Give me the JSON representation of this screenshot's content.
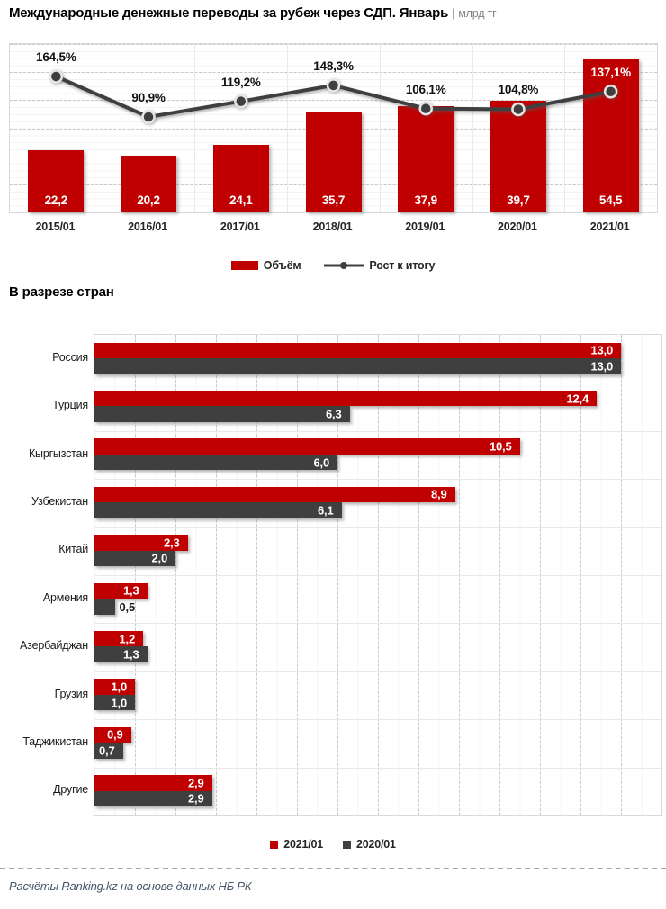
{
  "header": {
    "title": "Международные денежные переводы за рубеж через СДП. Январь",
    "separator": "|",
    "unit": "млрд тг"
  },
  "chart_data": [
    {
      "type": "bar",
      "subtype": "columns-with-growth-line",
      "title": "Международные денежные переводы за рубеж через СДП. Январь",
      "ylabel": "млрд тг",
      "ylim": [
        0,
        60
      ],
      "grid": "horizontal dashed majors every 10, light minor lines, legend bottom",
      "categories": [
        "2015/01",
        "2016/01",
        "2017/01",
        "2018/01",
        "2019/01",
        "2020/01",
        "2021/01"
      ],
      "series": [
        {
          "name": "Объём",
          "role": "bar",
          "color": "#C00000",
          "values": [
            22.2,
            20.2,
            24.1,
            35.7,
            37.9,
            39.7,
            54.5
          ],
          "labels": [
            "22,2",
            "20,2",
            "24,1",
            "35,7",
            "37,9",
            "39,7",
            "54,5"
          ]
        },
        {
          "name": "Рост к итогу",
          "role": "line",
          "color": "#3F3F3F",
          "values": [
            164.5,
            90.9,
            119.2,
            148.3,
            106.1,
            104.8,
            137.1
          ],
          "labels": [
            "164,5%",
            "90,9%",
            "119,2%",
            "148,3%",
            "106,1%",
            "104,8%",
            "137,1%"
          ]
        }
      ]
    },
    {
      "type": "bar",
      "subtype": "horizontal-grouped",
      "title": "В разрезе стран",
      "xlim": [
        0,
        14
      ],
      "grid": "vertical dashed majors every 1, light minor lines, legend bottom",
      "categories": [
        "Россия",
        "Турция",
        "Кыргызстан",
        "Узбекистан",
        "Китай",
        "Армения",
        "Азербайджан",
        "Грузия",
        "Таджикистан",
        "Другие"
      ],
      "series": [
        {
          "name": "2021/01",
          "color": "#C00000",
          "values": [
            13.0,
            12.4,
            10.5,
            8.9,
            2.3,
            1.3,
            1.2,
            1.0,
            0.9,
            2.9
          ],
          "labels": [
            "13,0",
            "12,4",
            "10,5",
            "8,9",
            "2,3",
            "1,3",
            "1,2",
            "1,0",
            "0,9",
            "2,9"
          ]
        },
        {
          "name": "2020/01",
          "color": "#3F3F3F",
          "values": [
            13.0,
            6.3,
            6.0,
            6.1,
            2.0,
            0.5,
            1.3,
            1.0,
            0.7,
            2.9
          ],
          "labels": [
            "13,0",
            "6,3",
            "6,0",
            "6,1",
            "2,0",
            "0,5",
            "1,3",
            "1,0",
            "0,7",
            "2,9"
          ]
        }
      ]
    }
  ],
  "footer": {
    "source": "Расчёты Ranking.kz на основе данных НБ РК"
  }
}
